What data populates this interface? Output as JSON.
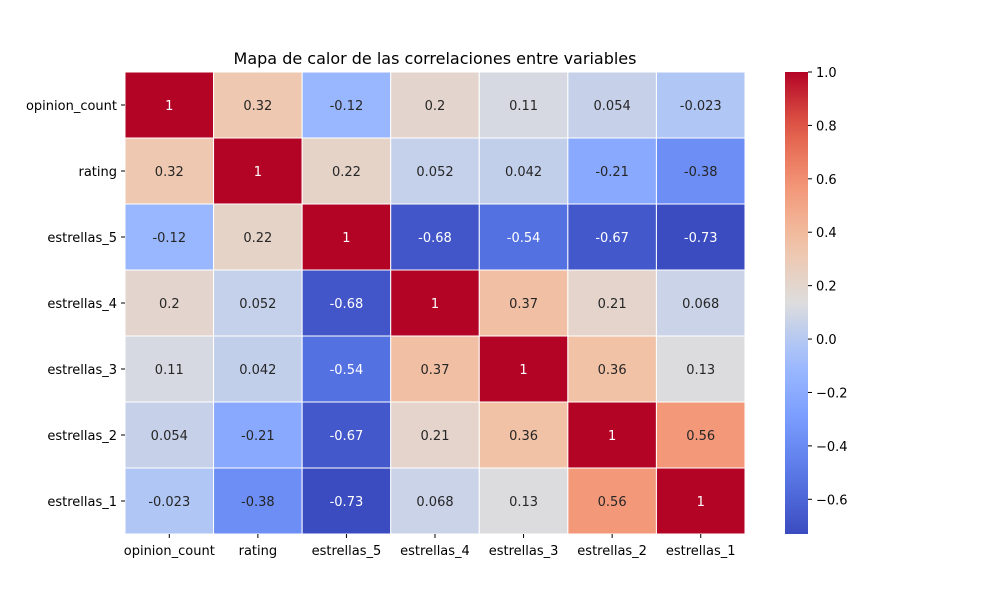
{
  "chart_data": {
    "type": "heatmap",
    "title": "Mapa de calor de las correlaciones entre variables",
    "xlabel": "",
    "ylabel": "",
    "x_categories": [
      "opinion_count",
      "rating",
      "estrellas_5",
      "estrellas_4",
      "estrellas_3",
      "estrellas_2",
      "estrellas_1"
    ],
    "y_categories": [
      "opinion_count",
      "rating",
      "estrellas_5",
      "estrellas_4",
      "estrellas_3",
      "estrellas_2",
      "estrellas_1"
    ],
    "values": [
      [
        1,
        0.32,
        -0.12,
        0.2,
        0.11,
        0.054,
        -0.023
      ],
      [
        0.32,
        1,
        0.22,
        0.052,
        0.042,
        -0.21,
        -0.38
      ],
      [
        -0.12,
        0.22,
        1,
        -0.68,
        -0.54,
        -0.67,
        -0.73
      ],
      [
        0.2,
        0.052,
        -0.68,
        1,
        0.37,
        0.21,
        0.068
      ],
      [
        0.11,
        0.042,
        -0.54,
        0.37,
        1,
        0.36,
        0.13
      ],
      [
        0.054,
        -0.21,
        -0.67,
        0.21,
        0.36,
        1,
        0.56
      ],
      [
        -0.023,
        -0.38,
        -0.73,
        0.068,
        0.13,
        0.56,
        1
      ]
    ],
    "colormap": "coolwarm",
    "colorbar": {
      "range": [
        -0.73,
        1.0
      ],
      "ticks": [
        1.0,
        0.8,
        0.6,
        0.4,
        0.2,
        0.0,
        -0.2,
        -0.4,
        -0.6
      ],
      "tick_labels": [
        "1.0",
        "0.8",
        "0.6",
        "0.4",
        "0.2",
        "0.0",
        "−0.2",
        "−0.4",
        "−0.6"
      ]
    },
    "annotations": true,
    "grid": false
  }
}
